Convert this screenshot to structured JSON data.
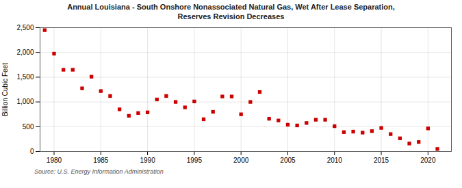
{
  "chart_data": {
    "type": "scatter",
    "title": "Annual Louisiana - South Onshore Nonassociated Natural Gas, Wet After Lease Separation,",
    "subtitle": "Reserves Revision Decreases",
    "y_label": "Billion Cubic Feet",
    "annotations": [
      "Source: U.S. Energy Information Administration"
    ],
    "x": [
      1979,
      1980,
      1981,
      1982,
      1983,
      1984,
      1985,
      1986,
      1987,
      1988,
      1989,
      1990,
      1991,
      1992,
      1993,
      1994,
      1995,
      1996,
      1997,
      1998,
      1999,
      2000,
      2001,
      2002,
      2003,
      2004,
      2005,
      2006,
      2007,
      2008,
      2009,
      2010,
      2011,
      2012,
      2013,
      2014,
      2015,
      2016,
      2017,
      2018,
      2019,
      2020,
      2021
    ],
    "values": [
      2450,
      1975,
      1650,
      1650,
      1275,
      1510,
      1220,
      1120,
      850,
      720,
      775,
      790,
      1050,
      1120,
      1000,
      890,
      1010,
      650,
      800,
      1110,
      1110,
      750,
      1000,
      1200,
      660,
      625,
      540,
      525,
      575,
      640,
      640,
      510,
      390,
      400,
      380,
      410,
      475,
      350,
      265,
      160,
      190,
      465,
      50
    ],
    "color": "#cc0000",
    "marker": "square",
    "xlim": [
      1978.5,
      2022.5
    ],
    "xticks": [
      1980,
      1985,
      1990,
      1995,
      2000,
      2005,
      2010,
      2015,
      2020
    ],
    "ylim": [
      0,
      2500
    ],
    "yticks": [
      0,
      500,
      {
        "value": 1000,
        "label": "1,000"
      },
      {
        "value": 1500,
        "label": "1,500"
      },
      {
        "value": 2000,
        "label": "2,000"
      },
      {
        "value": 2500,
        "label": "2,500"
      }
    ],
    "grid": true
  }
}
